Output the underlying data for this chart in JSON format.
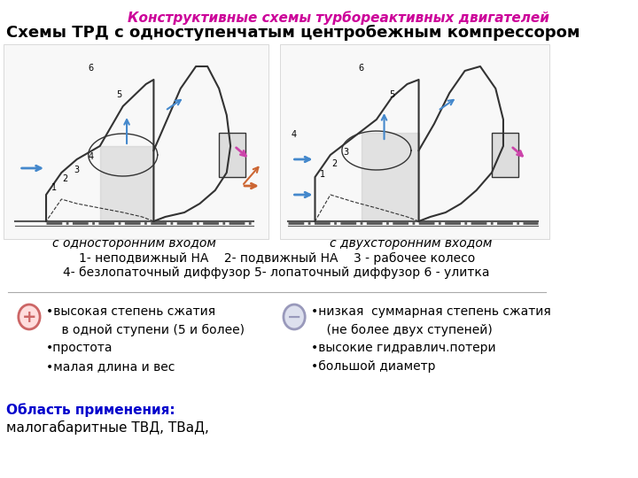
{
  "bg_color": "#ffffff",
  "header_text": "Конструктивные схемы турбореактивных двигателей",
  "header_color": "#cc0099",
  "header_fontsize": 11,
  "title_text": "Схемы ТРД с одноступенчатым центробежным компрессором",
  "title_fontsize": 13,
  "title_color": "#000000",
  "legend_line": "1- неподвижный НА    2- подвижный НА    3 - рабочее колесо\n4- безлопаточный диффузор 5- лопаточный диффузор 6 - улитка",
  "legend_fontsize": 10,
  "caption_left": "с односторонним входом",
  "caption_right": "с двухсторонним входом",
  "caption_fontsize": 10,
  "plus_label_lines": [
    "•высокая степень сжатия",
    "    в одной ступени (5 и более)",
    "•простота",
    "•малая длина и вес"
  ],
  "minus_label_lines": [
    "•низкая  суммарная степень сжатия",
    "    (не более двух ступеней)",
    "•высокие гидравлич.потери",
    "•большой диаметр"
  ],
  "pros_cons_fontsize": 10,
  "application_label": "Область применения:",
  "application_text": "малогабаритные ТВД, ТВаД,",
  "application_label_color": "#0000cc",
  "application_text_color": "#000000",
  "application_fontsize": 11,
  "plus_circle_color": "#cc6666",
  "minus_circle_color": "#9999bb",
  "diagram_bg": "#f5f5f5",
  "divider_color": "#aaaaaa"
}
